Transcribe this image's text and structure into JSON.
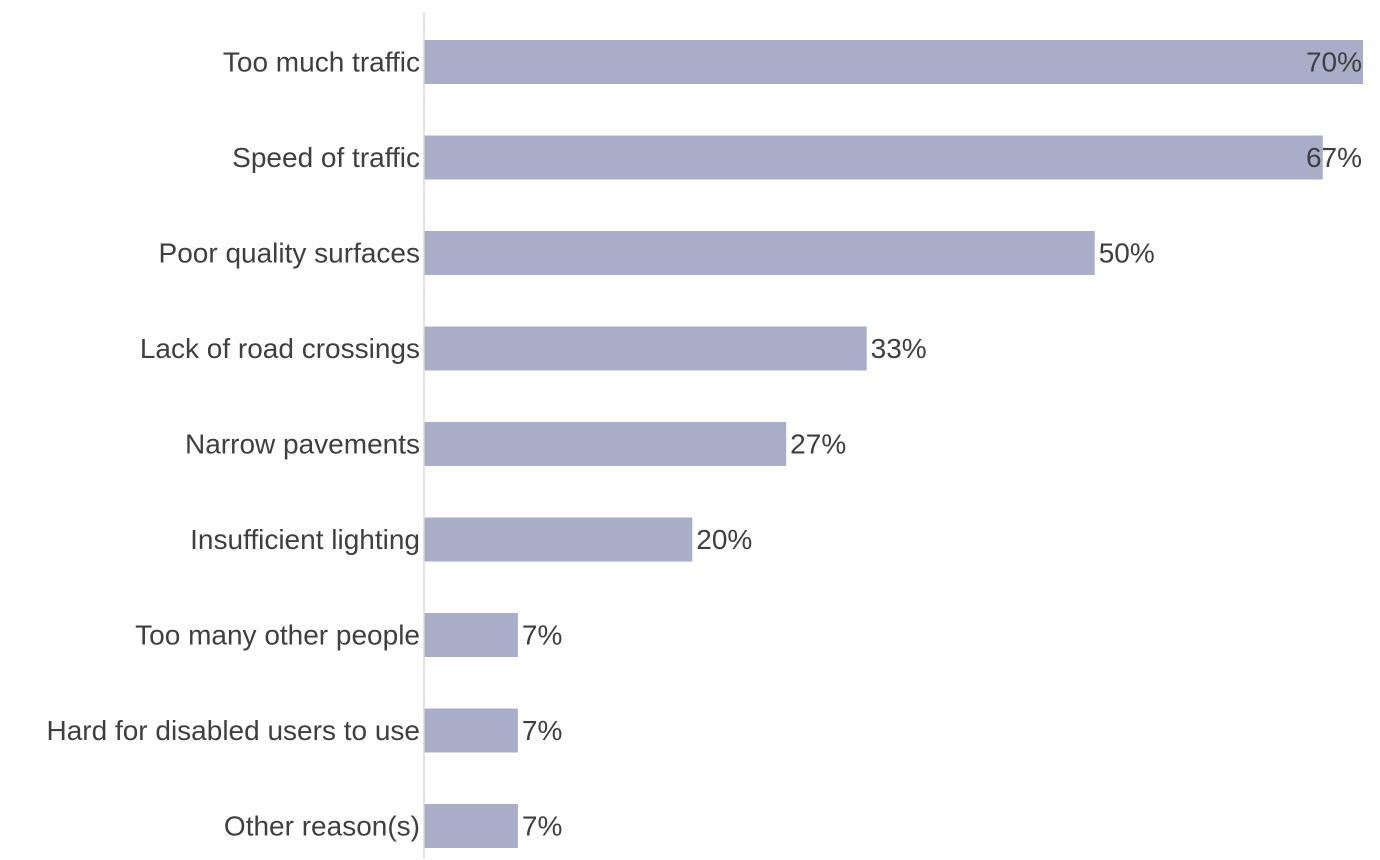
{
  "chart_data": {
    "type": "bar",
    "orientation": "horizontal",
    "categories": [
      "Too much traffic",
      "Speed of traffic",
      "Poor quality surfaces",
      "Lack of road crossings",
      "Narrow pavements",
      "Insufficient lighting",
      "Too many other people",
      "Hard for disabled users to use",
      "Other reason(s)"
    ],
    "values": [
      70,
      67,
      50,
      33,
      27,
      20,
      7,
      7,
      7
    ],
    "value_labels": [
      "70%",
      "67%",
      "50%",
      "33%",
      "27%",
      "20%",
      "7%",
      "7%",
      "7%"
    ],
    "xlim": [
      0,
      70
    ],
    "title": "",
    "xlabel": "",
    "ylabel": "",
    "grid": false,
    "legend": "none",
    "bar_color": "#a9aec8",
    "axis_color": "#d9d9d9",
    "text_color": "#3f3f3f"
  }
}
